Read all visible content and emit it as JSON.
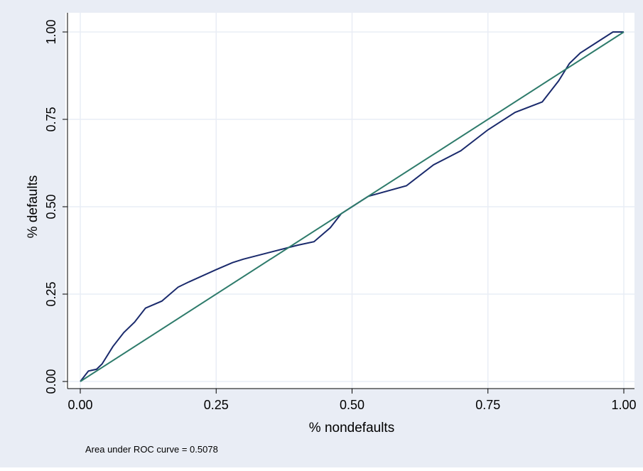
{
  "chart_data": {
    "type": "line",
    "xlabel": "% nondefaults",
    "ylabel": "% defaults",
    "note": "Area under ROC curve = 0.5078",
    "xlim": [
      0,
      1
    ],
    "ylim": [
      0,
      1
    ],
    "xticks": [
      {
        "value": 0,
        "label": "0.00"
      },
      {
        "value": 0.25,
        "label": "0.25"
      },
      {
        "value": 0.5,
        "label": "0.50"
      },
      {
        "value": 0.75,
        "label": "0.75"
      },
      {
        "value": 1,
        "label": "1.00"
      }
    ],
    "yticks": [
      {
        "value": 0,
        "label": "0.00"
      },
      {
        "value": 0.25,
        "label": "0.25"
      },
      {
        "value": 0.5,
        "label": "0.50"
      },
      {
        "value": 0.75,
        "label": "0.75"
      },
      {
        "value": 1,
        "label": "1.00"
      }
    ],
    "grid": true,
    "series": [
      {
        "color": "#1a2a6c",
        "x": [
          0,
          0.01,
          0.015,
          0.03,
          0.04,
          0.06,
          0.08,
          0.1,
          0.12,
          0.15,
          0.18,
          0.2,
          0.25,
          0.28,
          0.3,
          0.35,
          0.4,
          0.43,
          0.46,
          0.48,
          0.5,
          0.53,
          0.6,
          0.65,
          0.7,
          0.75,
          0.8,
          0.85,
          0.88,
          0.9,
          0.92,
          0.95,
          0.98,
          1
        ],
        "y": [
          0,
          0.02,
          0.03,
          0.035,
          0.05,
          0.1,
          0.14,
          0.17,
          0.21,
          0.23,
          0.27,
          0.285,
          0.32,
          0.34,
          0.35,
          0.37,
          0.39,
          0.4,
          0.44,
          0.48,
          0.5,
          0.53,
          0.56,
          0.62,
          0.66,
          0.72,
          0.77,
          0.8,
          0.86,
          0.91,
          0.94,
          0.97,
          1,
          1
        ]
      },
      {
        "color": "#2e7b6b",
        "x": [
          0,
          1
        ],
        "y": [
          0,
          1
        ]
      }
    ]
  }
}
